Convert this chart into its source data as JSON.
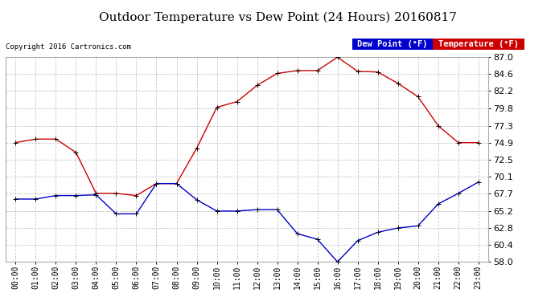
{
  "title": "Outdoor Temperature vs Dew Point (24 Hours) 20160817",
  "copyright": "Copyright 2016 Cartronics.com",
  "hours": [
    "00:00",
    "01:00",
    "02:00",
    "03:00",
    "04:00",
    "05:00",
    "06:00",
    "07:00",
    "08:00",
    "09:00",
    "10:00",
    "11:00",
    "12:00",
    "13:00",
    "14:00",
    "15:00",
    "16:00",
    "17:00",
    "18:00",
    "19:00",
    "20:00",
    "21:00",
    "22:00",
    "23:00"
  ],
  "temperature": [
    74.9,
    75.4,
    75.4,
    73.5,
    67.7,
    67.7,
    67.4,
    69.1,
    69.1,
    74.1,
    79.9,
    80.7,
    83.0,
    84.7,
    85.1,
    85.1,
    87.0,
    85.0,
    84.9,
    83.3,
    81.4,
    77.3,
    74.9,
    74.9
  ],
  "dew_point": [
    66.9,
    66.9,
    67.4,
    67.4,
    67.5,
    64.8,
    64.8,
    69.1,
    69.1,
    66.8,
    65.2,
    65.2,
    65.4,
    65.4,
    62.0,
    61.2,
    58.0,
    61.0,
    62.2,
    62.8,
    63.1,
    66.2,
    67.7,
    69.3
  ],
  "temp_color": "#cc0000",
  "dew_color": "#0000cc",
  "ylim_min": 58.0,
  "ylim_max": 87.0,
  "yticks": [
    58.0,
    60.4,
    62.8,
    65.2,
    67.7,
    70.1,
    72.5,
    74.9,
    77.3,
    79.8,
    82.2,
    84.6,
    87.0
  ],
  "bg_color": "#ffffff",
  "plot_bg": "#ffffff",
  "grid_color": "#c8c8c8",
  "legend_dew_label": "Dew Point (°F)",
  "legend_temp_label": "Temperature (°F)"
}
